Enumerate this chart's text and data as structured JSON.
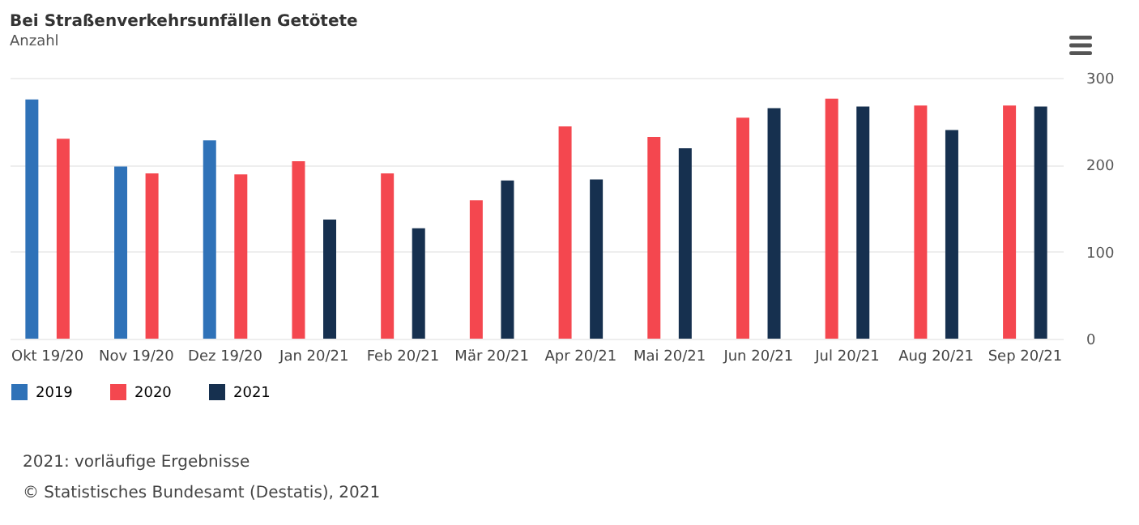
{
  "chart_data": {
    "type": "bar",
    "title": "Bei Straßenverkehrsunfällen Getötete",
    "subtitle": "Anzahl",
    "categories": [
      "Okt 19/20",
      "Nov 19/20",
      "Dez 19/20",
      "Jan 20/21",
      "Feb 20/21",
      "Mär 20/21",
      "Apr 20/21",
      "Mai 20/21",
      "Jun 20/21",
      "Jul 20/21",
      "Aug 20/21",
      "Sep 20/21"
    ],
    "series": [
      {
        "name": "2019",
        "color": "#2f72b8",
        "values": [
          275,
          198,
          228,
          null,
          null,
          null,
          null,
          null,
          null,
          null,
          null,
          null
        ]
      },
      {
        "name": "2020",
        "color": "#f4474f",
        "values": [
          230,
          190,
          189,
          204,
          190,
          159,
          244,
          232,
          254,
          276,
          268,
          268
        ]
      },
      {
        "name": "2021",
        "color": "#16304f",
        "values": [
          null,
          null,
          null,
          137,
          127,
          182,
          183,
          219,
          265,
          267,
          240,
          267
        ]
      }
    ],
    "ylim": [
      0,
      300
    ],
    "yticks": [
      0,
      100,
      200,
      300
    ],
    "grid": "y",
    "legend": "bottom left",
    "annotations": [
      "2021: vorläufige Ergebnisse",
      "© Statistisches Bundesamt (Destatis), 2021"
    ]
  }
}
